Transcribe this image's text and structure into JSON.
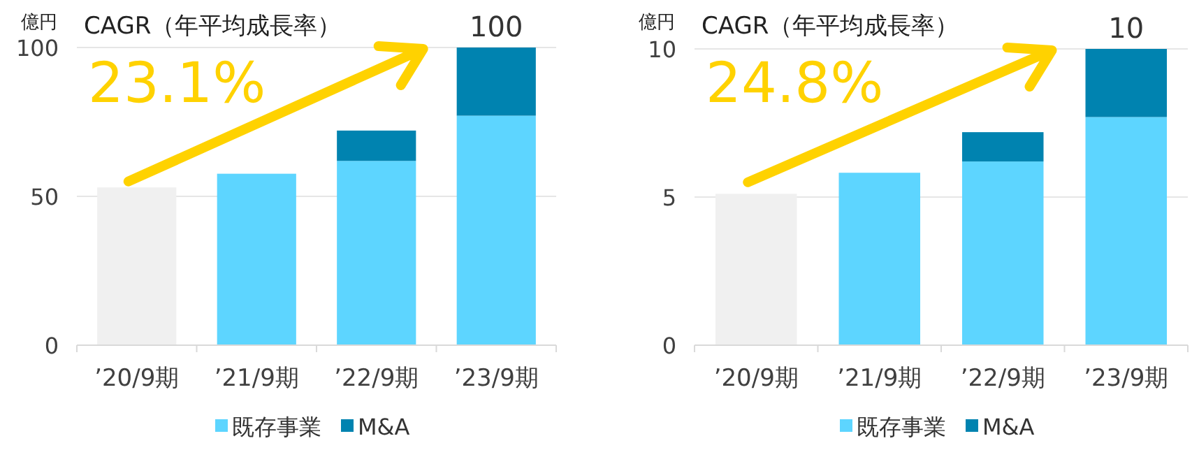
{
  "chart_data": [
    {
      "type": "bar",
      "ylabel": "億円",
      "categories": [
        "’20/9期",
        "’21/9期",
        "’22/9期",
        "’23/9期"
      ],
      "stacked": true,
      "ylim": [
        0,
        100
      ],
      "yticks": [
        0,
        50,
        100
      ],
      "grid": "y",
      "legend": "bottom",
      "series": [
        {
          "name": "既存事業",
          "color": "#5dd5ff",
          "colors": [
            "#f0f0f0",
            "#5dd5ff",
            "#5dd5ff",
            "#5dd5ff"
          ],
          "values": [
            53.0,
            57.6,
            61.9,
            77.1
          ]
        },
        {
          "name": "M&A",
          "color": "#0083b0",
          "values": [
            null,
            null,
            10.2,
            22.9
          ]
        }
      ],
      "totals": [
        null,
        null,
        null,
        "100"
      ],
      "annotations": [
        "CAGR（年平均成長率）",
        "23.1%"
      ]
    },
    {
      "type": "bar",
      "ylabel": "億円",
      "categories": [
        "’20/9期",
        "’21/9期",
        "’22/9期",
        "’23/9期"
      ],
      "stacked": true,
      "ylim": [
        0,
        10
      ],
      "yticks": [
        0,
        5,
        10
      ],
      "grid": "y",
      "legend": "bottom",
      "series": [
        {
          "name": "既存事業",
          "color": "#5dd5ff",
          "colors": [
            "#f0f0f0",
            "#5dd5ff",
            "#5dd5ff",
            "#5dd5ff"
          ],
          "values": [
            5.11,
            5.82,
            6.2,
            7.7
          ]
        },
        {
          "name": "M&A",
          "color": "#0083b0",
          "values": [
            null,
            null,
            0.99,
            2.3
          ]
        }
      ],
      "totals": [
        null,
        null,
        null,
        "10"
      ],
      "annotations": [
        "CAGR（年平均成長率）",
        "24.8%"
      ]
    }
  ]
}
